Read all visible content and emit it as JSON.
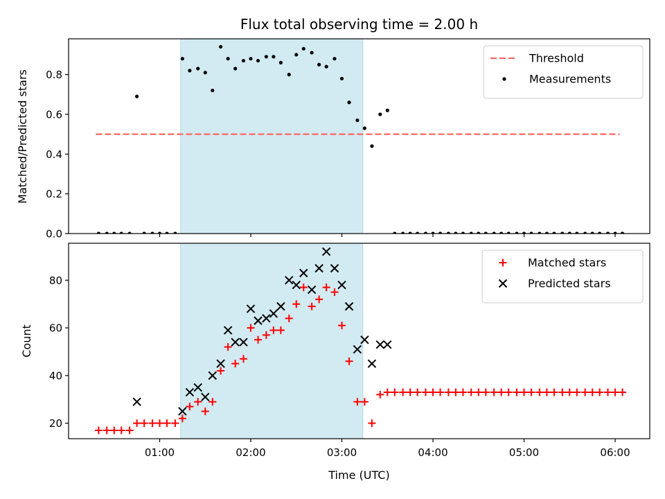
{
  "chart_data": {
    "title": "Flux total observing time = 2.00 h",
    "xlabel": "Time (UTC)",
    "x_unit": "hours UTC",
    "xlim": [
      0.0,
      6.38
    ],
    "xticks": [
      1,
      2,
      3,
      4,
      5,
      6
    ],
    "xtick_labels": [
      "01:00",
      "02:00",
      "03:00",
      "04:00",
      "05:00",
      "06:00"
    ],
    "highlight_span": {
      "start": 1.23,
      "end": 3.23
    },
    "highlight_color": "#add8e6",
    "panels": [
      {
        "type": "scatter",
        "ylabel": "Matched/Predicted stars",
        "ylim": [
          0,
          0.98
        ],
        "yticks": [
          0.0,
          0.2,
          0.4,
          0.6,
          0.8
        ],
        "ytick_labels": [
          "0.0",
          "0.2",
          "0.4",
          "0.6",
          "0.8"
        ],
        "legend_position": "top-right",
        "lines": [
          {
            "name": "Threshold",
            "y": 0.5,
            "x_range": [
              0.3,
              6.05
            ],
            "color": "#ff6666",
            "style": "dashed"
          }
        ],
        "series": [
          {
            "name": "Measurements",
            "marker": "dot",
            "color": "#000000",
            "points": [
              [
                0.33,
                0
              ],
              [
                0.42,
                0
              ],
              [
                0.5,
                0
              ],
              [
                0.58,
                0
              ],
              [
                0.67,
                0
              ],
              [
                0.75,
                0.69
              ],
              [
                0.83,
                0
              ],
              [
                0.92,
                0
              ],
              [
                1.0,
                0
              ],
              [
                1.08,
                0
              ],
              [
                1.17,
                0
              ],
              [
                1.25,
                0.88
              ],
              [
                1.33,
                0.82
              ],
              [
                1.42,
                0.83
              ],
              [
                1.5,
                0.81
              ],
              [
                1.58,
                0.72
              ],
              [
                1.67,
                0.94
              ],
              [
                1.75,
                0.88
              ],
              [
                1.83,
                0.83
              ],
              [
                1.92,
                0.87
              ],
              [
                2.0,
                0.88
              ],
              [
                2.08,
                0.87
              ],
              [
                2.17,
                0.89
              ],
              [
                2.25,
                0.89
              ],
              [
                2.33,
                0.86
              ],
              [
                2.42,
                0.8
              ],
              [
                2.5,
                0.9
              ],
              [
                2.58,
                0.93
              ],
              [
                2.67,
                0.91
              ],
              [
                2.75,
                0.85
              ],
              [
                2.83,
                0.84
              ],
              [
                2.92,
                0.88
              ],
              [
                3.0,
                0.78
              ],
              [
                3.08,
                0.66
              ],
              [
                3.17,
                0.57
              ],
              [
                3.25,
                0.53
              ],
              [
                3.33,
                0.44
              ],
              [
                3.42,
                0.6
              ],
              [
                3.5,
                0.62
              ],
              [
                3.58,
                0
              ],
              [
                3.67,
                0
              ],
              [
                3.75,
                0
              ],
              [
                3.83,
                0
              ],
              [
                3.92,
                0
              ],
              [
                4.0,
                0
              ],
              [
                4.08,
                0
              ],
              [
                4.17,
                0
              ],
              [
                4.25,
                0
              ],
              [
                4.33,
                0
              ],
              [
                4.42,
                0
              ],
              [
                4.5,
                0
              ],
              [
                4.58,
                0
              ],
              [
                4.67,
                0
              ],
              [
                4.75,
                0
              ],
              [
                4.83,
                0
              ],
              [
                4.92,
                0
              ],
              [
                5.0,
                0
              ],
              [
                5.08,
                0
              ],
              [
                5.17,
                0
              ],
              [
                5.25,
                0
              ],
              [
                5.33,
                0
              ],
              [
                5.42,
                0
              ],
              [
                5.5,
                0
              ],
              [
                5.58,
                0
              ],
              [
                5.67,
                0
              ],
              [
                5.75,
                0
              ],
              [
                5.83,
                0
              ],
              [
                5.92,
                0
              ],
              [
                6.0,
                0
              ],
              [
                6.08,
                0
              ]
            ]
          }
        ]
      },
      {
        "type": "scatter",
        "ylabel": "Count",
        "ylim": [
          13.5,
          95.5
        ],
        "yticks": [
          20,
          40,
          60,
          80
        ],
        "ytick_labels": [
          "20",
          "40",
          "60",
          "80"
        ],
        "legend_position": "top-right",
        "series": [
          {
            "name": "Matched stars",
            "marker": "plus",
            "color": "#ff0000",
            "points": [
              [
                0.33,
                17
              ],
              [
                0.42,
                17
              ],
              [
                0.5,
                17
              ],
              [
                0.58,
                17
              ],
              [
                0.67,
                17
              ],
              [
                0.75,
                20
              ],
              [
                0.83,
                20
              ],
              [
                0.92,
                20
              ],
              [
                1.0,
                20
              ],
              [
                1.08,
                20
              ],
              [
                1.17,
                20
              ],
              [
                1.25,
                22
              ],
              [
                1.33,
                27
              ],
              [
                1.42,
                29
              ],
              [
                1.5,
                25
              ],
              [
                1.58,
                29
              ],
              [
                1.67,
                42
              ],
              [
                1.75,
                52
              ],
              [
                1.83,
                45
              ],
              [
                1.92,
                47
              ],
              [
                2.0,
                60
              ],
              [
                2.08,
                55
              ],
              [
                2.17,
                57
              ],
              [
                2.25,
                59
              ],
              [
                2.33,
                59
              ],
              [
                2.42,
                64
              ],
              [
                2.5,
                70
              ],
              [
                2.58,
                77
              ],
              [
                2.67,
                69
              ],
              [
                2.75,
                72
              ],
              [
                2.83,
                77
              ],
              [
                2.92,
                75
              ],
              [
                3.0,
                61
              ],
              [
                3.08,
                46
              ],
              [
                3.17,
                29
              ],
              [
                3.25,
                29
              ],
              [
                3.33,
                20
              ],
              [
                3.42,
                32
              ],
              [
                3.5,
                33
              ],
              [
                3.58,
                33
              ],
              [
                3.67,
                33
              ],
              [
                3.75,
                33
              ],
              [
                3.83,
                33
              ],
              [
                3.92,
                33
              ],
              [
                4.0,
                33
              ],
              [
                4.08,
                33
              ],
              [
                4.17,
                33
              ],
              [
                4.25,
                33
              ],
              [
                4.33,
                33
              ],
              [
                4.42,
                33
              ],
              [
                4.5,
                33
              ],
              [
                4.58,
                33
              ],
              [
                4.67,
                33
              ],
              [
                4.75,
                33
              ],
              [
                4.83,
                33
              ],
              [
                4.92,
                33
              ],
              [
                5.0,
                33
              ],
              [
                5.08,
                33
              ],
              [
                5.17,
                33
              ],
              [
                5.25,
                33
              ],
              [
                5.33,
                33
              ],
              [
                5.42,
                33
              ],
              [
                5.5,
                33
              ],
              [
                5.58,
                33
              ],
              [
                5.67,
                33
              ],
              [
                5.75,
                33
              ],
              [
                5.83,
                33
              ],
              [
                5.92,
                33
              ],
              [
                6.0,
                33
              ],
              [
                6.08,
                33
              ]
            ]
          },
          {
            "name": "Predicted stars",
            "marker": "cross",
            "color": "#000000",
            "points": [
              [
                0.75,
                29
              ],
              [
                1.25,
                25
              ],
              [
                1.33,
                33
              ],
              [
                1.42,
                35
              ],
              [
                1.5,
                31
              ],
              [
                1.58,
                40
              ],
              [
                1.67,
                45
              ],
              [
                1.75,
                59
              ],
              [
                1.83,
                54
              ],
              [
                1.92,
                54
              ],
              [
                2.0,
                68
              ],
              [
                2.08,
                63
              ],
              [
                2.17,
                64
              ],
              [
                2.25,
                66
              ],
              [
                2.33,
                69
              ],
              [
                2.42,
                80
              ],
              [
                2.5,
                78
              ],
              [
                2.58,
                83
              ],
              [
                2.67,
                76
              ],
              [
                2.75,
                85
              ],
              [
                2.83,
                92
              ],
              [
                2.92,
                85
              ],
              [
                3.0,
                78
              ],
              [
                3.08,
                69
              ],
              [
                3.17,
                51
              ],
              [
                3.25,
                55
              ],
              [
                3.33,
                45
              ],
              [
                3.42,
                53
              ],
              [
                3.5,
                53
              ]
            ]
          }
        ]
      }
    ]
  }
}
